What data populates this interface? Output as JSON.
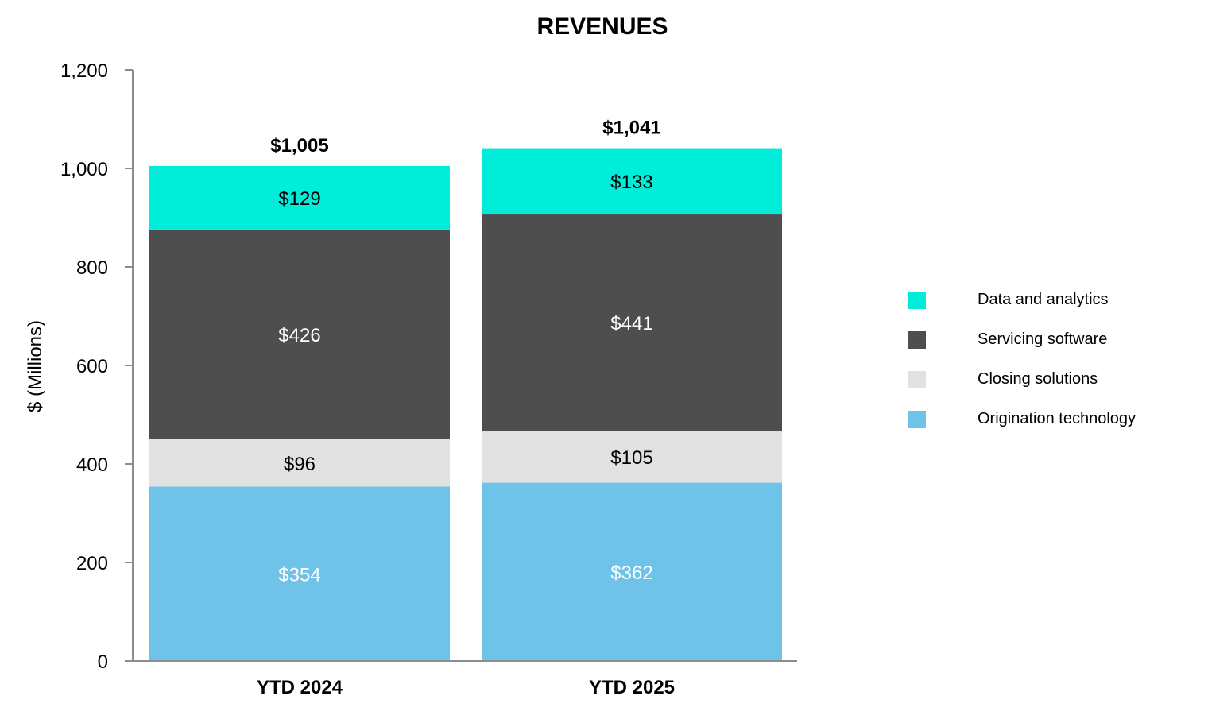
{
  "chart_data": {
    "type": "bar",
    "stacked": true,
    "title": "REVENUES",
    "xlabel": "",
    "ylabel": "$ (Millions)",
    "ylim": [
      0,
      1200
    ],
    "yticks": [
      0,
      200,
      400,
      600,
      800,
      1000,
      1200
    ],
    "ytick_labels": [
      "0",
      "200",
      "400",
      "600",
      "800",
      "1,000",
      "1,200"
    ],
    "grid": false,
    "legend_position": "right",
    "categories": [
      "YTD 2024",
      "YTD 2025"
    ],
    "totals": [
      1005,
      1041
    ],
    "total_labels": [
      "$1,005",
      "$1,041"
    ],
    "series": [
      {
        "name": "Origination technology",
        "color": "#70C3E8",
        "label_color": "#ffffff",
        "values": [
          354,
          362
        ],
        "labels": [
          "$354",
          "$362"
        ]
      },
      {
        "name": "Closing solutions",
        "color": "#E1E1E1",
        "label_color": "#000000",
        "values": [
          96,
          105
        ],
        "labels": [
          "$96",
          "$105"
        ]
      },
      {
        "name": "Servicing software",
        "color": "#4E4E4E",
        "label_color": "#ffffff",
        "values": [
          426,
          441
        ],
        "labels": [
          "$426",
          "$441"
        ]
      },
      {
        "name": "Data and analytics",
        "color": "#00EED9",
        "label_color": "#000000",
        "values": [
          129,
          133
        ],
        "labels": [
          "$129",
          "$133"
        ]
      }
    ],
    "legend_order": [
      3,
      2,
      1,
      0
    ]
  }
}
